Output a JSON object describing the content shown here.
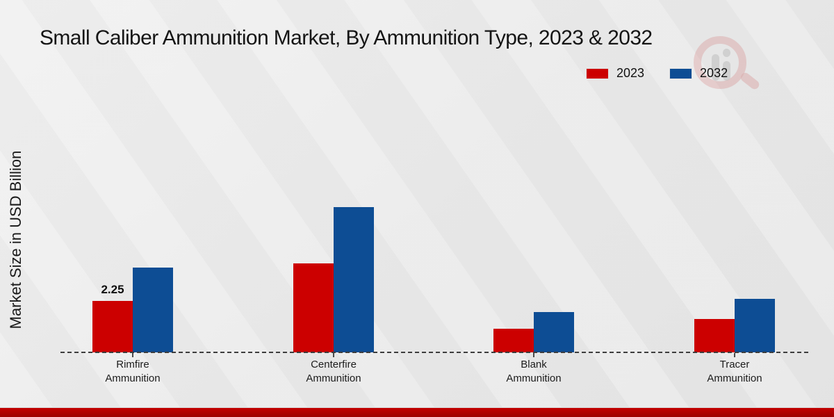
{
  "title": "Small Caliber Ammunition Market, By Ammunition Type, 2023 & 2032",
  "ylabel": "Market Size in USD Billion",
  "colors": {
    "series_2023": "#cc0000",
    "series_2032": "#0d4d94",
    "footer_strip": "#b00000",
    "baseline": "#3d3d3d"
  },
  "legend": {
    "position": "top-right",
    "items": [
      {
        "label": "2023",
        "color": "#cc0000"
      },
      {
        "label": "2032",
        "color": "#0d4d94"
      }
    ]
  },
  "watermark": "circular red-ring logo with gray bars (faint, behind legend)",
  "chart_data": {
    "type": "bar",
    "title": "Small Caliber Ammunition Market, By Ammunition Type, 2023 & 2032",
    "xlabel": "",
    "ylabel": "Market Size in USD Billion",
    "ylim": [
      0,
      7
    ],
    "grid": false,
    "legend_position": "top-right",
    "baseline_style": "dashed",
    "categories": [
      "Rimfire Ammunition",
      "Centerfire Ammunition",
      "Blank Ammunition",
      "Tracer Ammunition"
    ],
    "series": [
      {
        "name": "2023",
        "color": "#cc0000",
        "values": [
          2.25,
          3.9,
          1.05,
          1.45
        ],
        "labels": [
          "2.25",
          null,
          null,
          null
        ]
      },
      {
        "name": "2032",
        "color": "#0d4d94",
        "values": [
          3.7,
          6.35,
          1.75,
          2.35
        ],
        "labels": [
          null,
          null,
          null,
          null
        ]
      }
    ]
  }
}
